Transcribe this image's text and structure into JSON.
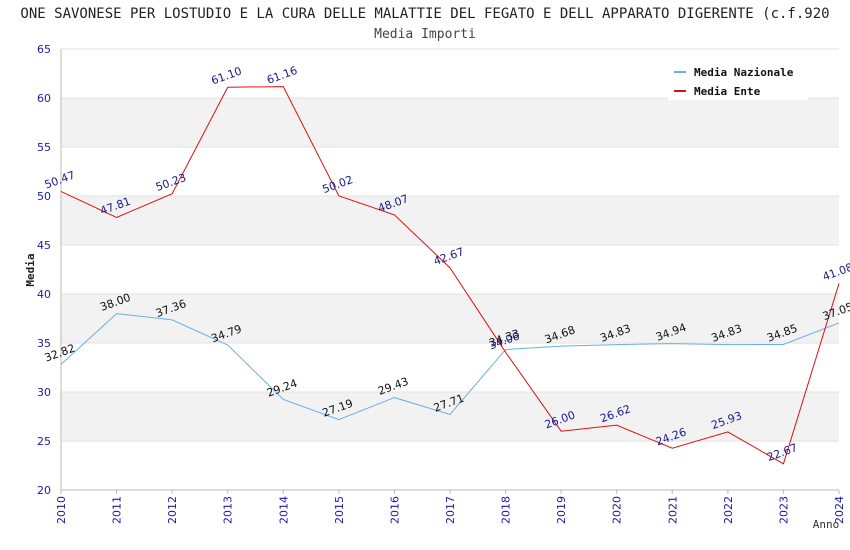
{
  "header": {
    "title": "ONE SAVONESE PER LOSTUDIO E LA CURA DELLE MALATTIE DEL FEGATO E DELL APPARATO DIGERENTE (c.f.920",
    "subtitle": "Media Importi"
  },
  "chart_data": {
    "type": "line",
    "title": "ONE SAVONESE PER LOSTUDIO E LA CURA DELLE MALATTIE DEL FEGATO E DELL APPARATO DIGERENTE (c.f.920",
    "subtitle": "Media Importi",
    "xlabel": "Anno",
    "ylabel": "Media",
    "ylim": [
      20,
      65
    ],
    "yticks": [
      20,
      25,
      30,
      35,
      40,
      45,
      50,
      55,
      60,
      65
    ],
    "x": [
      "2010",
      "2011",
      "2012",
      "2013",
      "2014",
      "2015",
      "2016",
      "2017",
      "2018",
      "2019",
      "2020",
      "2021",
      "2022",
      "2023",
      "2024"
    ],
    "legend_position": "top-right",
    "grid": "horizontal alternating bands",
    "series": [
      {
        "name": "Media Nazionale",
        "color": "#6aaeea",
        "label_color": "#111111",
        "values": [
          32.82,
          38.0,
          37.36,
          34.79,
          29.24,
          27.19,
          29.43,
          27.71,
          34.33,
          34.68,
          34.83,
          34.94,
          34.83,
          34.85,
          37.05
        ],
        "labels": [
          "32.82",
          "38.00",
          "37.36",
          "34.79",
          "29.24",
          "27.19",
          "29.43",
          "27.71",
          "34.33",
          "34.68",
          "34.83",
          "34.94",
          "34.83",
          "34.85",
          "37.05"
        ]
      },
      {
        "name": "Media Ente",
        "color": "#dd1111",
        "label_color": "#1a1a8c",
        "values": [
          50.47,
          47.81,
          50.23,
          61.1,
          61.16,
          50.02,
          48.07,
          42.67,
          34.06,
          26.0,
          26.62,
          24.26,
          25.93,
          22.67,
          41.08
        ],
        "labels": [
          "50.47",
          "47.81",
          "50.23",
          "61.10",
          "61.16",
          "50.02",
          "48.07",
          "42.67",
          "34.06",
          "26.00",
          "26.62",
          "24.26",
          "25.93",
          "22.67",
          "41.08"
        ]
      }
    ]
  }
}
